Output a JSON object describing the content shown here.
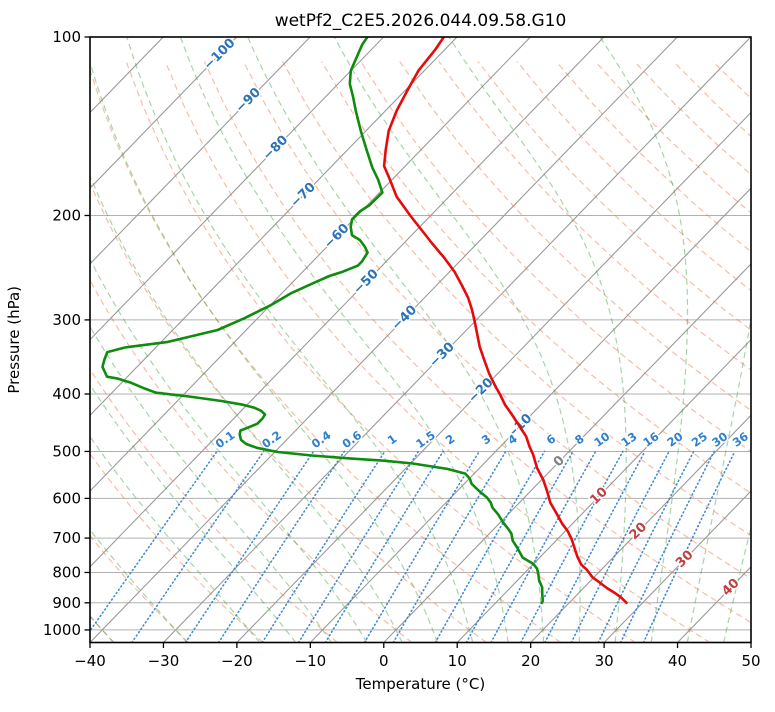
{
  "title": "wetPf2_C2E5.2026.044.09.58.G10",
  "axes": {
    "x_label": "Temperature (°C)",
    "y_label": "Pressure (hPa)",
    "x_range": [
      -40,
      50
    ],
    "p_range": [
      100,
      1050
    ],
    "x_tick_values": [
      -40,
      -30,
      -20,
      -10,
      0,
      10,
      20,
      30,
      40,
      50
    ],
    "x_tick_labels": [
      "−40",
      "−30",
      "−20",
      "−10",
      "0",
      "10",
      "20",
      "30",
      "40",
      "50"
    ],
    "y_tick_values": [
      100,
      200,
      300,
      400,
      500,
      600,
      700,
      800,
      900,
      1000
    ],
    "y_tick_labels": [
      "100",
      "200",
      "300",
      "400",
      "500",
      "600",
      "700",
      "800",
      "900",
      "1000"
    ],
    "y_scale": "log"
  },
  "chart_data": {
    "type": "line",
    "chart_kind": "skew-t-log-p sounding",
    "title": "wetPf2_C2E5.2026.044.09.58.G10",
    "xlabel": "Temperature (°C)",
    "ylabel": "Pressure (hPa)",
    "xlim": [
      -40,
      50
    ],
    "ylim": [
      1050,
      100
    ],
    "series": [
      {
        "name": "temperature",
        "color": "#e60b0b",
        "units": "pressure_hPa_vs_degC",
        "points": [
          [
            100,
            -71.8
          ],
          [
            105,
            -71.3
          ],
          [
            114,
            -70.8
          ],
          [
            123,
            -69.7
          ],
          [
            133,
            -68.5
          ],
          [
            144,
            -66.9
          ],
          [
            155,
            -64.8
          ],
          [
            165,
            -62.9
          ],
          [
            174,
            -60.3
          ],
          [
            186,
            -57.1
          ],
          [
            200,
            -52.8
          ],
          [
            223,
            -46.1
          ],
          [
            236,
            -42.5
          ],
          [
            249,
            -39.3
          ],
          [
            262,
            -36.6
          ],
          [
            275,
            -34.1
          ],
          [
            288,
            -32.0
          ],
          [
            302,
            -30.0
          ],
          [
            333,
            -26.0
          ],
          [
            350,
            -23.7
          ],
          [
            370,
            -21.1
          ],
          [
            387,
            -18.8
          ],
          [
            401,
            -16.9
          ],
          [
            417,
            -14.9
          ],
          [
            433,
            -12.7
          ],
          [
            454,
            -10.0
          ],
          [
            472,
            -7.8
          ],
          [
            491,
            -6.0
          ],
          [
            506,
            -4.5
          ],
          [
            533,
            -2.2
          ],
          [
            558,
            0.2
          ],
          [
            584,
            2.3
          ],
          [
            610,
            4.2
          ],
          [
            634,
            6.3
          ],
          [
            662,
            8.6
          ],
          [
            682,
            10.4
          ],
          [
            704,
            12.0
          ],
          [
            752,
            15.0
          ],
          [
            776,
            16.6
          ],
          [
            791,
            18.0
          ],
          [
            815,
            19.8
          ],
          [
            832,
            21.5
          ],
          [
            850,
            23.2
          ],
          [
            865,
            24.8
          ],
          [
            882,
            26.4
          ],
          [
            900,
            27.8
          ]
        ]
      },
      {
        "name": "dewpoint",
        "color": "#0e8c0e",
        "units": "pressure_hPa_vs_degC",
        "points": [
          [
            100,
            -82.2
          ],
          [
            103,
            -81.9
          ],
          [
            114,
            -80.0
          ],
          [
            120,
            -78.4
          ],
          [
            126,
            -76.3
          ],
          [
            133,
            -74.1
          ],
          [
            144,
            -70.7
          ],
          [
            155,
            -67.4
          ],
          [
            166,
            -64.3
          ],
          [
            174,
            -61.9
          ],
          [
            183,
            -59.6
          ],
          [
            192,
            -59.7
          ],
          [
            197,
            -60.2
          ],
          [
            203,
            -60.2
          ],
          [
            209,
            -59.4
          ],
          [
            216,
            -58.1
          ],
          [
            220,
            -56.4
          ],
          [
            226,
            -54.8
          ],
          [
            231,
            -53.7
          ],
          [
            239,
            -53.3
          ],
          [
            243,
            -53.3
          ],
          [
            249,
            -54.6
          ],
          [
            253,
            -55.8
          ],
          [
            258,
            -56.7
          ],
          [
            270,
            -58.7
          ],
          [
            283,
            -59.9
          ],
          [
            298,
            -61.8
          ],
          [
            312,
            -63.9
          ],
          [
            327,
            -69.2
          ],
          [
            334,
            -74.2
          ],
          [
            340,
            -76.0
          ],
          [
            350,
            -75.4
          ],
          [
            360,
            -74.7
          ],
          [
            374,
            -72.8
          ],
          [
            377,
            -71.0
          ],
          [
            383,
            -68.7
          ],
          [
            391,
            -66.3
          ],
          [
            398,
            -64.0
          ],
          [
            404,
            -59.0
          ],
          [
            411,
            -54.0
          ],
          [
            417,
            -50.6
          ],
          [
            422,
            -48.6
          ],
          [
            427,
            -47.3
          ],
          [
            433,
            -46.3
          ],
          [
            440,
            -46.1
          ],
          [
            449,
            -46.1
          ],
          [
            456,
            -46.9
          ],
          [
            461,
            -47.5
          ],
          [
            468,
            -47.1
          ],
          [
            478,
            -46.2
          ],
          [
            486,
            -44.9
          ],
          [
            493,
            -43.0
          ],
          [
            501,
            -39.6
          ],
          [
            508,
            -34.5
          ],
          [
            514,
            -28.7
          ],
          [
            518,
            -24.2
          ],
          [
            524,
            -19.7
          ],
          [
            535,
            -14.3
          ],
          [
            545,
            -11.2
          ],
          [
            556,
            -9.9
          ],
          [
            567,
            -9.0
          ],
          [
            584,
            -6.9
          ],
          [
            598,
            -5.1
          ],
          [
            610,
            -3.9
          ],
          [
            622,
            -3.0
          ],
          [
            639,
            -1.3
          ],
          [
            659,
            0.4
          ],
          [
            675,
            1.9
          ],
          [
            688,
            3.0
          ],
          [
            707,
            4.1
          ],
          [
            726,
            5.6
          ],
          [
            741,
            6.7
          ],
          [
            755,
            7.7
          ],
          [
            764,
            8.8
          ],
          [
            773,
            9.9
          ],
          [
            788,
            11.1
          ],
          [
            803,
            11.9
          ],
          [
            826,
            13.0
          ],
          [
            848,
            14.3
          ],
          [
            868,
            15.1
          ],
          [
            892,
            16.1
          ],
          [
            900,
            16.3
          ]
        ]
      }
    ],
    "background": {
      "isobars": {
        "values": [
          100,
          200,
          300,
          400,
          500,
          600,
          700,
          800,
          900,
          1000
        ],
        "color": "#b0b0b0",
        "style": "solid"
      },
      "isotherms": {
        "start": -120,
        "end": 50,
        "step": 10,
        "color": "#9a9a9a",
        "style": "solid"
      },
      "dry_adiabats": {
        "theta_start": -60,
        "theta_end": 200,
        "step": 10,
        "color": "#ed7d52",
        "opacity": 0.5,
        "style": "dashed"
      },
      "moist_adiabats": {
        "starts_at_1000hPa": [
          -40,
          -30,
          -20,
          -15,
          -10,
          -5,
          0,
          5,
          10,
          15,
          20,
          25,
          30,
          35,
          40,
          45,
          50
        ],
        "color": "#3fa13f",
        "opacity": 0.45,
        "style": "dashed"
      },
      "mixing_ratio": {
        "values_g_per_kg": [
          0.1,
          0.2,
          0.4,
          0.6,
          1,
          1.5,
          2,
          3,
          4,
          6,
          8,
          10,
          13,
          16,
          20,
          25,
          30,
          36
        ],
        "labels": [
          "0.1",
          "0.2",
          "0.4",
          "0.6",
          "1",
          "1.5",
          "2",
          "3",
          "4",
          "6",
          "8",
          "10",
          "13",
          "16",
          "20",
          "25",
          "30",
          "36"
        ],
        "color": "#2f81cd",
        "opacity": 0.9,
        "style": "dotted",
        "line_bottom_hPa": 1050,
        "line_top_hPa": 500,
        "label_pressure_hPa": 478
      }
    },
    "isotherm_labels": [
      {
        "value": -100,
        "label": "−100",
        "p": 107,
        "color": "#2b72b8"
      },
      {
        "value": -90,
        "label": "−90",
        "p": 128,
        "color": "#2b72b8"
      },
      {
        "value": -80,
        "label": "−80",
        "p": 154,
        "color": "#2b72b8"
      },
      {
        "value": -70,
        "label": "−70",
        "p": 185,
        "color": "#2b72b8"
      },
      {
        "value": -60,
        "label": "−60",
        "p": 217,
        "color": "#2b72b8"
      },
      {
        "value": -50,
        "label": "−50",
        "p": 259,
        "color": "#2b72b8"
      },
      {
        "value": -40,
        "label": "−40",
        "p": 298,
        "color": "#2b72b8"
      },
      {
        "value": -30,
        "label": "−30",
        "p": 344,
        "color": "#2b72b8"
      },
      {
        "value": -20,
        "label": "−20",
        "p": 395,
        "color": "#2b72b8"
      },
      {
        "value": -10,
        "label": "−10",
        "p": 454,
        "color": "#2b72b8"
      },
      {
        "value": 0,
        "label": "0",
        "p": 520,
        "color": "#808080"
      },
      {
        "value": 10,
        "label": "10",
        "p": 595,
        "color": "#bf4040"
      },
      {
        "value": 20,
        "label": "20",
        "p": 682,
        "color": "#bf4040"
      },
      {
        "value": 30,
        "label": "30",
        "p": 760,
        "color": "#bf4040"
      },
      {
        "value": 40,
        "label": "40",
        "p": 848,
        "color": "#bf4040"
      }
    ]
  }
}
